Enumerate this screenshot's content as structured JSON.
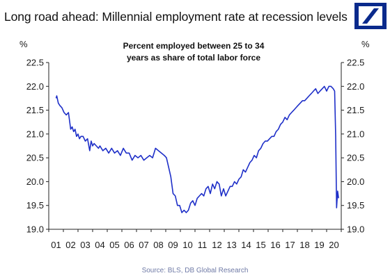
{
  "header": {
    "title": "Long road ahead: Millennial employment rate at recession levels",
    "logo_icon": "deutsche-bank-slash-logo",
    "brand_color": "#0a2a8c"
  },
  "source": "Source: BLS, DB Global Research",
  "chart_data": {
    "type": "line",
    "title_lines": [
      "Percent employed between 25 to 34",
      "years as share of total labor force"
    ],
    "ylabel_left": "%",
    "ylabel_right": "%",
    "ylim": [
      19.0,
      22.5
    ],
    "yticks": [
      "22.5",
      "22.0",
      "21.5",
      "21.0",
      "20.5",
      "20.0",
      "19.5",
      "19.0"
    ],
    "xticks": [
      "01",
      "02",
      "03",
      "04",
      "05",
      "06",
      "07",
      "08",
      "09",
      "10",
      "11",
      "12",
      "13",
      "14",
      "15",
      "16",
      "17",
      "18",
      "19",
      "20"
    ],
    "grid": false,
    "line_color": "#1e2fc8",
    "series": [
      {
        "x": [
          2001.0,
          2001.05,
          2001.15,
          2001.25,
          2001.4,
          2001.55,
          2001.7,
          2001.85,
          2002.0,
          2002.1,
          2002.2,
          2002.3,
          2002.4,
          2002.5,
          2002.6,
          2002.7,
          2002.85,
          2003.0,
          2003.15,
          2003.3,
          2003.4,
          2003.5,
          2003.6,
          2003.75,
          2003.9,
          2004.0,
          2004.2,
          2004.4,
          2004.6,
          2004.8,
          2005.0,
          2005.2,
          2005.4,
          2005.6,
          2005.8,
          2006.0,
          2006.2,
          2006.4,
          2006.6,
          2006.8,
          2007.0,
          2007.2,
          2007.4,
          2007.6,
          2007.8,
          2008.0,
          2008.2,
          2008.4,
          2008.55,
          2008.7,
          2008.85,
          2009.0,
          2009.15,
          2009.3,
          2009.45,
          2009.6,
          2009.75,
          2009.9,
          2010.05,
          2010.2,
          2010.35,
          2010.5,
          2010.65,
          2010.8,
          2010.95,
          2011.1,
          2011.25,
          2011.4,
          2011.55,
          2011.7,
          2011.85,
          2012.0,
          2012.15,
          2012.3,
          2012.45,
          2012.6,
          2012.75,
          2012.9,
          2013.05,
          2013.2,
          2013.35,
          2013.5,
          2013.65,
          2013.8,
          2013.95,
          2014.1,
          2014.25,
          2014.4,
          2014.55,
          2014.7,
          2014.85,
          2015.0,
          2015.15,
          2015.3,
          2015.45,
          2015.6,
          2015.75,
          2015.9,
          2016.05,
          2016.2,
          2016.35,
          2016.5,
          2016.65,
          2016.8,
          2016.95,
          2017.1,
          2017.25,
          2017.4,
          2017.55,
          2017.7,
          2017.85,
          2018.0,
          2018.15,
          2018.3,
          2018.45,
          2018.6,
          2018.75,
          2018.9,
          2019.05,
          2019.2,
          2019.35,
          2019.5,
          2019.65,
          2019.8,
          2019.95,
          2020.05,
          2020.12,
          2020.18,
          2020.25,
          2020.32
        ],
        "values": [
          21.75,
          21.8,
          21.65,
          21.6,
          21.55,
          21.45,
          21.4,
          21.45,
          21.1,
          21.15,
          21.05,
          21.1,
          20.95,
          21.0,
          20.9,
          20.95,
          20.95,
          20.85,
          20.9,
          20.65,
          20.85,
          20.75,
          20.8,
          20.75,
          20.7,
          20.75,
          20.65,
          20.7,
          20.6,
          20.7,
          20.6,
          20.65,
          20.55,
          20.7,
          20.6,
          20.6,
          20.45,
          20.55,
          20.5,
          20.55,
          20.45,
          20.5,
          20.55,
          20.5,
          20.7,
          20.65,
          20.6,
          20.55,
          20.5,
          20.3,
          20.1,
          19.75,
          19.7,
          19.5,
          19.5,
          19.35,
          19.4,
          19.35,
          19.4,
          19.55,
          19.6,
          19.5,
          19.65,
          19.7,
          19.75,
          19.7,
          19.85,
          19.9,
          19.75,
          19.95,
          19.85,
          20.0,
          19.95,
          19.7,
          19.85,
          19.7,
          19.8,
          19.9,
          19.9,
          20.0,
          19.95,
          20.05,
          20.1,
          20.25,
          20.2,
          20.3,
          20.4,
          20.45,
          20.55,
          20.5,
          20.65,
          20.7,
          20.8,
          20.85,
          20.85,
          20.9,
          20.95,
          20.95,
          21.05,
          21.1,
          21.2,
          21.25,
          21.35,
          21.3,
          21.4,
          21.45,
          21.5,
          21.55,
          21.6,
          21.65,
          21.7,
          21.7,
          21.75,
          21.8,
          21.85,
          21.9,
          21.95,
          21.85,
          21.9,
          21.95,
          22.0,
          21.9,
          22.0,
          22.0,
          21.95,
          21.9,
          20.95,
          19.45,
          19.8,
          19.65
        ]
      }
    ]
  }
}
